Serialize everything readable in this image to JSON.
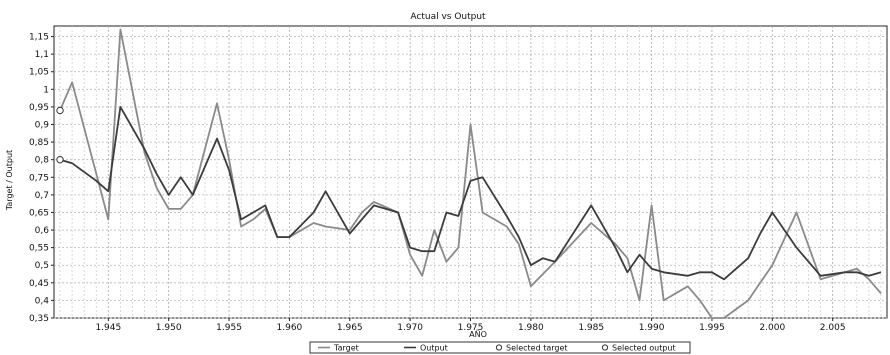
{
  "chart_data": {
    "type": "line",
    "title": "Actual vs Output",
    "xlabel": "AÑO",
    "ylabel": "Target / Output",
    "xlim": [
      1940.5,
      2009.5
    ],
    "ylim": [
      0.35,
      1.18
    ],
    "grid": true,
    "legend_position": "bottom",
    "x_ticks": [
      1945,
      1950,
      1955,
      1960,
      1965,
      1970,
      1975,
      1980,
      1985,
      1990,
      1995,
      2000,
      2005
    ],
    "x_tick_labels": [
      "1.945",
      "1.950",
      "1.955",
      "1.960",
      "1.965",
      "1.970",
      "1.975",
      "1.980",
      "1.985",
      "1.990",
      "1.995",
      "2.000",
      "2.005"
    ],
    "y_ticks": [
      0.35,
      0.4,
      0.45,
      0.5,
      0.55,
      0.6,
      0.65,
      0.7,
      0.75,
      0.8,
      0.85,
      0.9,
      0.95,
      1.0,
      1.05,
      1.1,
      1.15
    ],
    "y_tick_labels": [
      "0,35",
      "0,4",
      "0,45",
      "0,5",
      "0,55",
      "0,6",
      "0,65",
      "0,7",
      "0,75",
      "0,8",
      "0,85",
      "0,9",
      "0,95",
      "1",
      "1,05",
      "1,1",
      "1,15"
    ],
    "series": [
      {
        "name": "Target",
        "color": "#8a8a8a",
        "x": [
          1941,
          1942,
          1944,
          1945,
          1946,
          1948,
          1949,
          1950,
          1951,
          1952,
          1954,
          1955,
          1956,
          1957,
          1958,
          1959,
          1960,
          1962,
          1963,
          1965,
          1966,
          1967,
          1969,
          1970,
          1971,
          1972,
          1973,
          1974,
          1975,
          1976,
          1978,
          1979,
          1980,
          1982,
          1985,
          1987,
          1988,
          1989,
          1990,
          1991,
          1993,
          1994,
          1995,
          1996,
          1998,
          1999,
          2000,
          2002,
          2004,
          2006,
          2007,
          2008,
          2009
        ],
        "y": [
          0.94,
          1.02,
          0.76,
          0.63,
          1.17,
          0.82,
          0.72,
          0.66,
          0.66,
          0.7,
          0.96,
          0.8,
          0.61,
          0.63,
          0.66,
          0.58,
          0.58,
          0.62,
          0.61,
          0.6,
          0.65,
          0.68,
          0.65,
          0.53,
          0.47,
          0.6,
          0.51,
          0.55,
          0.9,
          0.65,
          0.61,
          0.56,
          0.44,
          0.51,
          0.62,
          0.56,
          0.52,
          0.4,
          0.67,
          0.4,
          0.44,
          0.4,
          0.35,
          0.35,
          0.4,
          0.45,
          0.5,
          0.65,
          0.46,
          0.48,
          0.49,
          0.46,
          0.42
        ]
      },
      {
        "name": "Output",
        "color": "#3c3c3c",
        "x": [
          1941,
          1942,
          1944,
          1945,
          1946,
          1948,
          1949,
          1950,
          1951,
          1952,
          1954,
          1955,
          1956,
          1958,
          1959,
          1960,
          1962,
          1963,
          1965,
          1966,
          1967,
          1969,
          1970,
          1971,
          1972,
          1973,
          1974,
          1975,
          1976,
          1978,
          1979,
          1980,
          1981,
          1982,
          1985,
          1987,
          1988,
          1989,
          1990,
          1991,
          1993,
          1994,
          1995,
          1996,
          1998,
          1999,
          2000,
          2002,
          2004,
          2006,
          2007,
          2008,
          2009
        ],
        "y": [
          0.8,
          0.79,
          0.74,
          0.71,
          0.95,
          0.83,
          0.76,
          0.7,
          0.75,
          0.7,
          0.86,
          0.77,
          0.63,
          0.67,
          0.58,
          0.58,
          0.65,
          0.71,
          0.59,
          0.63,
          0.67,
          0.65,
          0.55,
          0.54,
          0.54,
          0.65,
          0.64,
          0.74,
          0.75,
          0.64,
          0.58,
          0.5,
          0.52,
          0.51,
          0.67,
          0.55,
          0.48,
          0.53,
          0.49,
          0.48,
          0.47,
          0.48,
          0.48,
          0.46,
          0.52,
          0.59,
          0.65,
          0.55,
          0.47,
          0.48,
          0.48,
          0.47,
          0.48
        ]
      }
    ],
    "legend": [
      "Target",
      "Output",
      "Selected target",
      "Selected output"
    ],
    "selected_points": [
      {
        "series": "Target",
        "x": 1941,
        "y": 0.94
      },
      {
        "series": "Output",
        "x": 1941,
        "y": 0.8
      }
    ]
  }
}
